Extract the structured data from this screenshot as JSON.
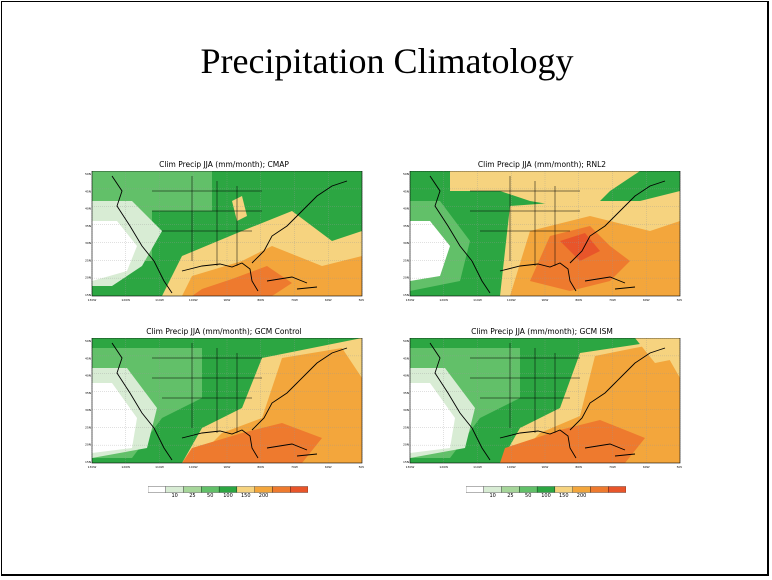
{
  "slide": {
    "title": "Precipitation Climatology"
  },
  "panels": [
    {
      "title": "Clim Precip JJA (mm/month); CMAP",
      "variant": 0
    },
    {
      "title": "Clim Precip JJA (mm/month); RNL2",
      "variant": 1
    },
    {
      "title": "Clim Precip JJA (mm/month); GCM Control",
      "variant": 2
    },
    {
      "title": "Clim Precip JJA (mm/month); GCM ISM",
      "variant": 3
    }
  ],
  "colorbar": {
    "ticks": [
      "10",
      "25",
      "50",
      "100",
      "150",
      "200"
    ],
    "colors": [
      "#ffffff",
      "#d8ecd4",
      "#a6d69a",
      "#62c069",
      "#2ca642",
      "#f6d37f",
      "#f3a63c",
      "#ee7a2e",
      "#e8552a"
    ]
  },
  "map_axes": {
    "lat_labels": [
      "50N",
      "45N",
      "40N",
      "35N",
      "30N",
      "25N",
      "20N",
      "15N"
    ],
    "lon_labels": [
      "130W",
      "120W",
      "110W",
      "100W",
      "90W",
      "80W",
      "70W",
      "60W",
      "50W"
    ]
  }
}
